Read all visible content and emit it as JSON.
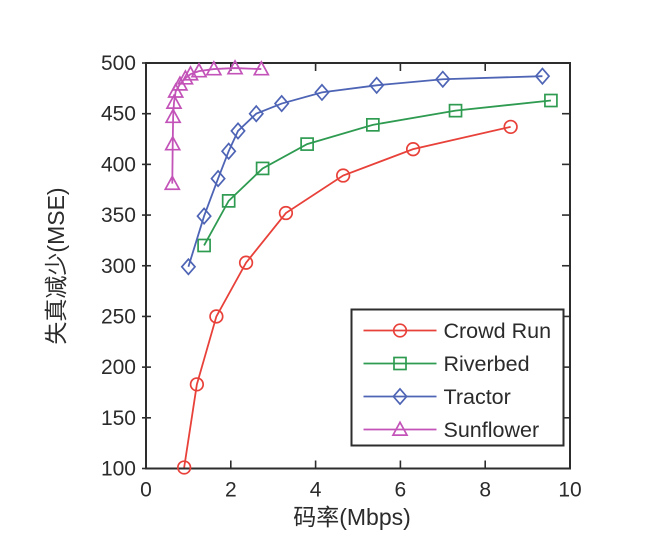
{
  "chart_data": {
    "type": "line",
    "title": "",
    "xlabel": "码率(Mbps)",
    "ylabel": "失真减少(MSE)",
    "xlim": [
      0,
      10
    ],
    "ylim": [
      100,
      500
    ],
    "xticks": [
      0,
      2,
      4,
      6,
      8,
      10
    ],
    "yticks": [
      100,
      150,
      200,
      250,
      300,
      350,
      400,
      450,
      500
    ],
    "grid": false,
    "legend_position": "lower-right",
    "axis_color": "#2d2d2d",
    "text_color": "#2b2b2b",
    "series": [
      {
        "name": "Crowd Run",
        "color": "#e8413a",
        "marker": "circle",
        "points": [
          [
            0.9,
            101
          ],
          [
            1.2,
            183
          ],
          [
            1.66,
            250
          ],
          [
            2.36,
            303
          ],
          [
            3.3,
            352
          ],
          [
            4.65,
            389
          ],
          [
            6.3,
            415
          ],
          [
            8.6,
            437
          ]
        ]
      },
      {
        "name": "Riverbed",
        "color": "#2e9b51",
        "marker": "square",
        "points": [
          [
            1.37,
            320
          ],
          [
            1.95,
            364
          ],
          [
            2.75,
            396
          ],
          [
            3.8,
            420
          ],
          [
            5.35,
            439
          ],
          [
            7.3,
            453
          ],
          [
            9.55,
            463
          ]
        ]
      },
      {
        "name": "Tractor",
        "color": "#4e64b5",
        "marker": "diamond",
        "points": [
          [
            1.0,
            299
          ],
          [
            1.37,
            349
          ],
          [
            1.7,
            386
          ],
          [
            1.95,
            413
          ],
          [
            2.17,
            433
          ],
          [
            2.6,
            450
          ],
          [
            3.2,
            460
          ],
          [
            4.15,
            471
          ],
          [
            5.44,
            478
          ],
          [
            7.0,
            484
          ],
          [
            9.35,
            487
          ]
        ]
      },
      {
        "name": "Sunflower",
        "color": "#c353b8",
        "marker": "triangle",
        "points": [
          [
            0.62,
            381
          ],
          [
            0.63,
            420
          ],
          [
            0.64,
            447
          ],
          [
            0.66,
            461
          ],
          [
            0.7,
            472
          ],
          [
            0.8,
            479
          ],
          [
            0.93,
            485
          ],
          [
            1.05,
            489
          ],
          [
            1.25,
            492
          ],
          [
            1.6,
            494
          ],
          [
            2.1,
            495
          ],
          [
            2.72,
            494
          ]
        ]
      }
    ]
  }
}
